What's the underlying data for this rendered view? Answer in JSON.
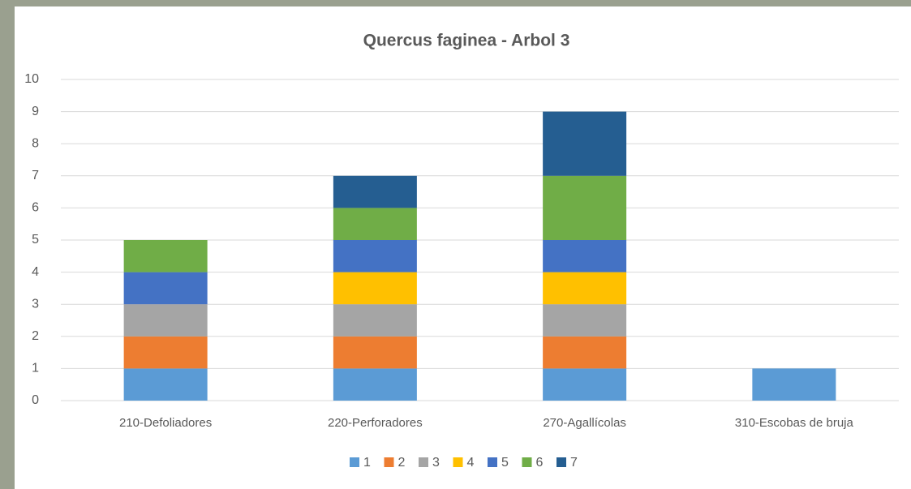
{
  "chart_data": {
    "type": "stacked_bar",
    "title": "Quercus faginea - Arbol 3",
    "categories": [
      "210-Defoliadores",
      "220-Perforadores",
      "270-Agallícolas",
      "310-Escobas de bruja"
    ],
    "series": [
      {
        "name": "1",
        "color": "#5b9bd5",
        "values": [
          1,
          1,
          1,
          1
        ]
      },
      {
        "name": "2",
        "color": "#ed7d31",
        "values": [
          1,
          1,
          1,
          0
        ]
      },
      {
        "name": "3",
        "color": "#a5a5a5",
        "values": [
          1,
          1,
          1,
          0
        ]
      },
      {
        "name": "4",
        "color": "#ffc000",
        "values": [
          0,
          1,
          1,
          0
        ]
      },
      {
        "name": "5",
        "color": "#4472c4",
        "values": [
          1,
          1,
          1,
          0
        ]
      },
      {
        "name": "6",
        "color": "#70ad47",
        "values": [
          1,
          1,
          2,
          0
        ]
      },
      {
        "name": "7",
        "color": "#255e91",
        "values": [
          0,
          1,
          2,
          0
        ]
      }
    ],
    "ylim": [
      0,
      10
    ],
    "yticks": [
      0,
      1,
      2,
      3,
      4,
      5,
      6,
      7,
      8,
      9,
      10
    ],
    "grid": true,
    "legend": "bottom"
  }
}
